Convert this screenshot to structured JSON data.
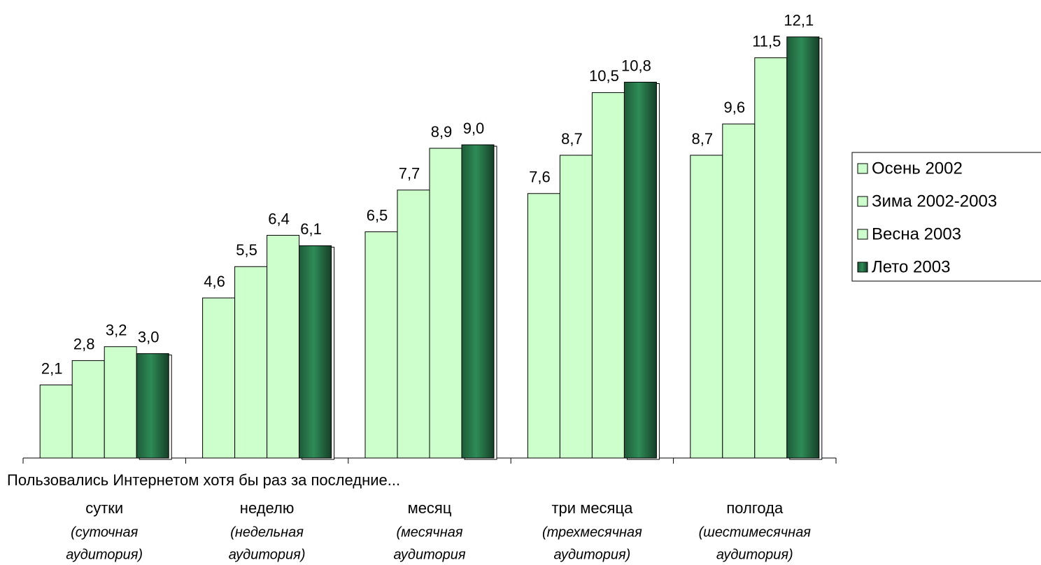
{
  "chart_data": {
    "type": "bar",
    "x_label": "Пользовались Интернетом хотя бы раз за последние...",
    "categories": [
      "сутки",
      "неделю",
      "месяц",
      "три месяца",
      "полгода"
    ],
    "category_notes": [
      [
        "(суточная",
        "аудитория)"
      ],
      [
        "(недельная",
        "аудитория)"
      ],
      [
        "(месячная",
        "аудитория"
      ],
      [
        "(трехмесячная",
        "аудитория)"
      ],
      [
        "(шестимесячная",
        "аудитория)"
      ]
    ],
    "series": [
      {
        "name": "Осень 2002",
        "color": "#ccffcc",
        "values": [
          2.1,
          4.6,
          6.5,
          7.6,
          8.7
        ],
        "value_labels": [
          "2,1",
          "4,6",
          "6,5",
          "7,6",
          "8,7"
        ]
      },
      {
        "name": "Зима 2002-2003",
        "color": "#ccffcc",
        "values": [
          2.8,
          5.5,
          7.7,
          8.7,
          9.6
        ],
        "value_labels": [
          "2,8",
          "5,5",
          "7,7",
          "8,7",
          "9,6"
        ]
      },
      {
        "name": "Весна 2003",
        "color": "#ccffcc",
        "values": [
          3.2,
          6.4,
          8.9,
          10.5,
          11.5
        ],
        "value_labels": [
          "3,2",
          "6,4",
          "8,9",
          "10,5",
          "11,5"
        ]
      },
      {
        "name": "Лето 2003",
        "color": "#2e8b57",
        "values": [
          3.0,
          6.1,
          9.0,
          10.8,
          12.1
        ],
        "value_labels": [
          "3,0",
          "6,1",
          "9,0",
          "10,8",
          "12,1"
        ]
      }
    ],
    "ylim": [
      0,
      13
    ],
    "legend": "right"
  }
}
